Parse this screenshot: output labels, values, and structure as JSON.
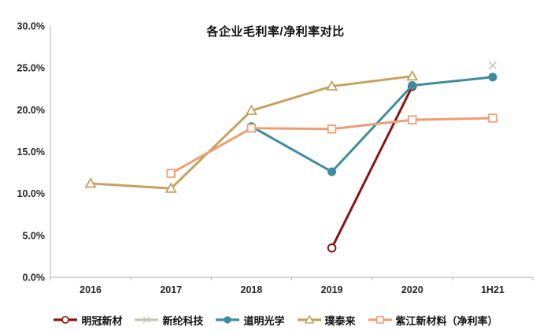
{
  "chart_data": {
    "type": "line",
    "title": "各企业毛利率/净利率对比",
    "categories": [
      "2016",
      "2017",
      "2018",
      "2019",
      "2020",
      "1H21"
    ],
    "y_ticks": [
      "0.0%",
      "5.0%",
      "10.0%",
      "15.0%",
      "20.0%",
      "25.0%",
      "30.0%"
    ],
    "ylim": [
      0,
      30
    ],
    "unit": "percent",
    "grid": false,
    "legend_position": "bottom",
    "axis_color": "#BFBFBF",
    "label_color": "#262626",
    "series": [
      {
        "name": "明冠新材",
        "color": "#8B1410",
        "marker": "circle-open",
        "values": [
          null,
          null,
          null,
          3.5,
          22.8,
          null
        ]
      },
      {
        "name": "新纶科技",
        "color": "#C5C5B8",
        "marker": "x",
        "values": [
          null,
          null,
          null,
          null,
          null,
          25.3
        ]
      },
      {
        "name": "道明光学",
        "color": "#3E8D9E",
        "marker": "circle",
        "values": [
          null,
          null,
          18.0,
          12.6,
          22.9,
          23.9
        ]
      },
      {
        "name": "璞泰来",
        "color": "#C3A361",
        "marker": "triangle-open",
        "values": [
          11.2,
          10.6,
          19.9,
          22.8,
          24.0,
          null
        ]
      },
      {
        "name": "紫江新材料（净利率）",
        "color": "#EB9E73",
        "marker": "square-open",
        "values": [
          null,
          12.4,
          17.8,
          17.7,
          18.8,
          19.0
        ]
      }
    ]
  }
}
